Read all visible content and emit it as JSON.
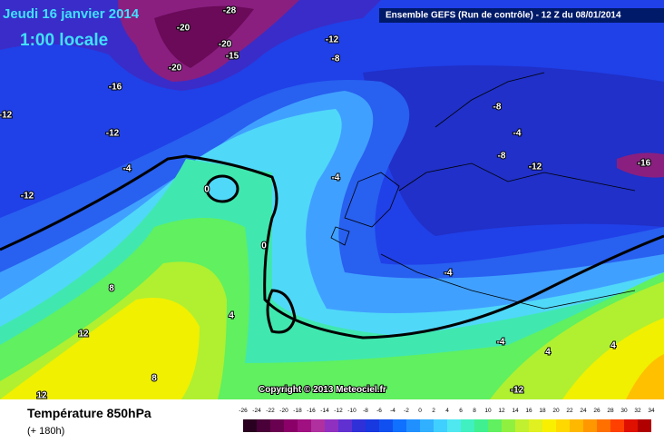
{
  "header": {
    "date": "Jeudi 16 janvier 2014",
    "time": "1:00 locale",
    "model": "Ensemble GEFS (Run de contrôle)  -  12 Z du 08/01/2014",
    "copyright": "Copyright © 2013 Meteociel.fr"
  },
  "footer": {
    "title": "Température 850hPa",
    "lead": "(+ 180h)"
  },
  "contour_labels": [
    -28,
    -20,
    -20,
    -15,
    -20,
    -12,
    -8,
    -16,
    -12,
    -12,
    -4,
    -12,
    0,
    -4,
    -8,
    -4,
    -8,
    -12,
    -16,
    0,
    -4,
    8,
    4,
    12,
    8,
    12,
    -4,
    4,
    4,
    -12
  ],
  "legend": {
    "labels": [
      -26,
      -24,
      -22,
      -20,
      -18,
      -16,
      -14,
      -12,
      -10,
      -8,
      -6,
      -4,
      -2,
      0,
      2,
      4,
      6,
      8,
      10,
      12,
      14,
      16,
      18,
      20,
      22,
      24,
      26,
      28,
      30,
      32,
      34
    ],
    "colors": [
      "#2a0020",
      "#4a0038",
      "#6a0050",
      "#8a0068",
      "#a01080",
      "#b030a0",
      "#9030c0",
      "#6030d0",
      "#3030d8",
      "#1838e0",
      "#1050f0",
      "#1070ff",
      "#2090ff",
      "#30b0ff",
      "#40d0ff",
      "#50e8f0",
      "#40f0c0",
      "#40f090",
      "#60f060",
      "#90f040",
      "#c0f030",
      "#e0f020",
      "#f8f000",
      "#ffd800",
      "#ffb800",
      "#ff9800",
      "#ff7000",
      "#ff4000",
      "#e01000",
      "#b00000"
    ]
  }
}
